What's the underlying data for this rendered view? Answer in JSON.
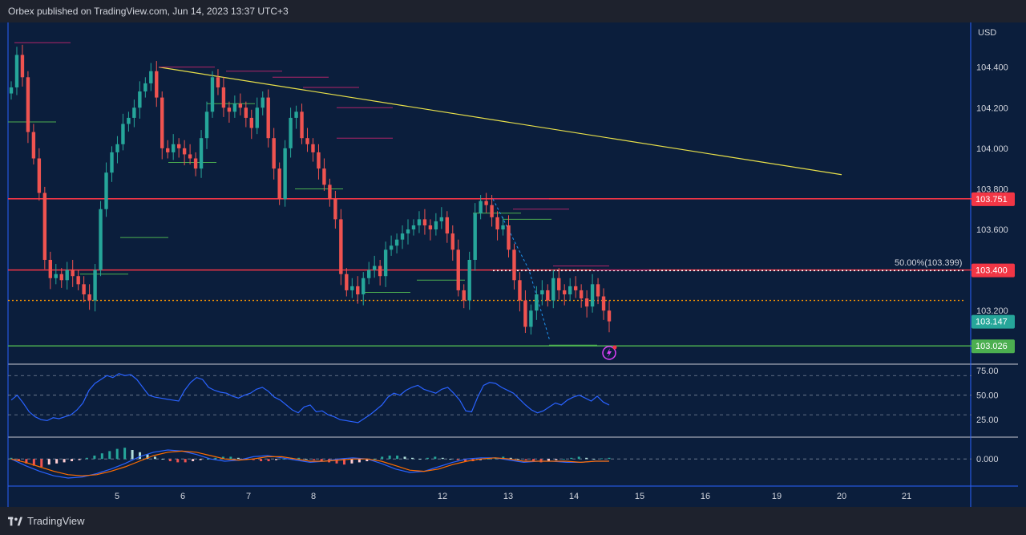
{
  "header": {
    "publisher_text": "Orbex published on TradingView.com, Jun 14, 2023 13:37 UTC+3"
  },
  "footer": {
    "brand": "TradingView"
  },
  "colors": {
    "background": "#0b1e3c",
    "bull": "#26a69a",
    "bear": "#ef5350",
    "resistance": "#f23645",
    "support": "#4caf50",
    "trendline": "#e8e04a",
    "rsi": "#2962ff",
    "macd": "#2962ff",
    "signal": "#ff6d00"
  },
  "chart_data": [
    {
      "type": "candlestick",
      "currency": "USD",
      "ylim": [
        102.94,
        104.62
      ],
      "y_ticks": [
        "104.400",
        "104.200",
        "104.000",
        "103.800",
        "103.600",
        "103.200"
      ],
      "x_ticks": [
        "5",
        "6",
        "7",
        "8",
        "12",
        "13",
        "14",
        "15",
        "16",
        "19",
        "20",
        "21"
      ],
      "levels": [
        {
          "price": 103.751,
          "label": "103.751",
          "color": "#f23645"
        },
        {
          "price": 103.4,
          "label": "103.400",
          "color": "#f23645"
        },
        {
          "price": 103.026,
          "label": "103.026",
          "color": "#4caf50"
        }
      ],
      "current_price": {
        "price": 103.147,
        "label": "103.147"
      },
      "fib_level": {
        "price": 103.399,
        "label": "50.00%(103.399)"
      },
      "dotted_level": 103.25,
      "close_path": [
        104.3,
        104.46,
        104.35,
        104.08,
        103.95,
        103.78,
        103.45,
        103.36,
        103.38,
        103.35,
        103.4,
        103.37,
        103.33,
        103.28,
        103.25,
        103.4,
        103.7,
        103.88,
        103.98,
        104.02,
        104.12,
        104.15,
        104.2,
        104.28,
        104.32,
        104.38,
        104.25,
        104.0,
        103.98,
        104.02,
        104.0,
        103.97,
        103.95,
        103.9,
        104.05,
        104.18,
        104.35,
        104.3,
        104.2,
        104.18,
        104.22,
        104.2,
        104.15,
        104.1,
        104.2,
        104.25,
        104.05,
        103.9,
        103.75,
        104.0,
        104.15,
        104.18,
        104.05,
        104.02,
        103.98,
        103.9,
        103.82,
        103.75,
        103.65,
        103.38,
        103.3,
        103.32,
        103.28,
        103.36,
        103.4,
        103.42,
        103.37,
        103.5,
        103.52,
        103.55,
        103.58,
        103.6,
        103.62,
        103.65,
        103.62,
        103.6,
        103.64,
        103.66,
        103.58,
        103.5,
        103.3,
        103.25,
        103.45,
        103.68,
        103.74,
        103.72,
        103.66,
        103.6,
        103.62,
        103.5,
        103.35,
        103.25,
        103.12,
        103.2,
        103.28,
        103.3,
        103.25,
        103.36,
        103.3,
        103.28,
        103.32,
        103.3,
        103.26,
        103.22,
        103.33,
        103.27,
        103.2,
        103.147
      ],
      "swing_highs": [
        104.52,
        104.4,
        104.38,
        104.35,
        104.3,
        104.2,
        104.05,
        103.75,
        103.7,
        103.42,
        103.4
      ],
      "swing_lows": [
        104.13,
        103.56,
        103.38,
        103.93,
        104.22,
        103.8,
        103.29,
        103.68,
        103.65,
        103.35,
        103.03
      ],
      "trendline": [
        104.4,
        103.87
      ]
    },
    {
      "type": "line",
      "name": "RSI",
      "ylim": [
        8,
        80
      ],
      "y_ticks": [
        "75.00",
        "50.00",
        "25.00"
      ],
      "guides": [
        70,
        50,
        30
      ],
      "values": [
        45,
        50,
        42,
        33,
        28,
        25,
        24,
        27,
        26,
        28,
        30,
        35,
        42,
        55,
        62,
        66,
        70,
        68,
        72,
        70,
        71,
        66,
        58,
        50,
        48,
        47,
        46,
        45,
        44,
        55,
        63,
        68,
        66,
        58,
        55,
        53,
        52,
        49,
        47,
        50,
        52,
        56,
        58,
        54,
        48,
        45,
        40,
        35,
        32,
        38,
        40,
        33,
        34,
        30,
        28,
        25,
        24,
        23,
        22,
        26,
        30,
        35,
        40,
        48,
        52,
        50,
        55,
        58,
        60,
        56,
        54,
        52,
        56,
        58,
        52,
        45,
        34,
        33,
        48,
        60,
        63,
        62,
        58,
        55,
        52,
        46,
        40,
        35,
        32,
        34,
        38,
        42,
        40,
        45,
        48,
        50,
        47,
        44,
        49,
        43,
        40
      ]
    },
    {
      "type": "histogram+line",
      "name": "MACD",
      "ylim": [
        -0.22,
        0.18
      ],
      "y_ticks": [
        "0.000"
      ],
      "histogram": [
        0.01,
        -0.02,
        -0.04,
        -0.06,
        -0.07,
        -0.05,
        -0.04,
        -0.03,
        -0.02,
        -0.01,
        0.01,
        0.03,
        0.05,
        0.07,
        0.09,
        0.1,
        0.08,
        0.06,
        0.04,
        0.02,
        0,
        -0.02,
        -0.03,
        -0.03,
        -0.02,
        -0.01,
        0,
        0.01,
        0.02,
        0.02,
        0.01,
        0,
        -0.01,
        -0.02,
        -0.02,
        -0.01,
        0,
        0.01,
        0.01,
        0,
        -0.01,
        -0.02,
        -0.03,
        -0.04,
        -0.05,
        -0.04,
        -0.03,
        -0.02,
        0,
        0.02,
        0.03,
        0.03,
        0.02,
        0.01,
        0,
        0.01,
        0.02,
        0.01,
        0,
        -0.01,
        -0.02,
        -0.02,
        -0.01,
        0,
        0.01,
        0.02,
        0.01,
        0,
        -0.01,
        -0.02,
        -0.03,
        -0.02,
        -0.01,
        0,
        0.01,
        0.02,
        0.01,
        0,
        0.005,
        0.01
      ],
      "macd": [
        0,
        -0.06,
        -0.11,
        -0.15,
        -0.17,
        -0.16,
        -0.13,
        -0.09,
        -0.04,
        0.02,
        0.06,
        0.08,
        0.07,
        0.04,
        0.0,
        -0.02,
        -0.01,
        0.02,
        0.03,
        0.01,
        -0.01,
        -0.03,
        -0.02,
        0.0,
        0.01,
        0.0,
        -0.04,
        -0.09,
        -0.12,
        -0.11,
        -0.07,
        -0.03,
        0.0,
        0.01,
        0.01,
        -0.01,
        -0.03,
        -0.02,
        -0.02,
        -0.03,
        -0.03,
        -0.02,
        -0.02
      ],
      "signal": [
        0,
        -0.03,
        -0.07,
        -0.11,
        -0.14,
        -0.15,
        -0.14,
        -0.11,
        -0.07,
        -0.02,
        0.03,
        0.06,
        0.07,
        0.06,
        0.03,
        0.0,
        -0.01,
        0.0,
        0.02,
        0.02,
        0.0,
        -0.02,
        -0.02,
        -0.01,
        0.0,
        0.0,
        -0.02,
        -0.06,
        -0.1,
        -0.11,
        -0.09,
        -0.05,
        -0.02,
        0.0,
        0.01,
        0.0,
        -0.02,
        -0.02,
        -0.02,
        -0.02,
        -0.03,
        -0.02,
        -0.02
      ]
    }
  ]
}
